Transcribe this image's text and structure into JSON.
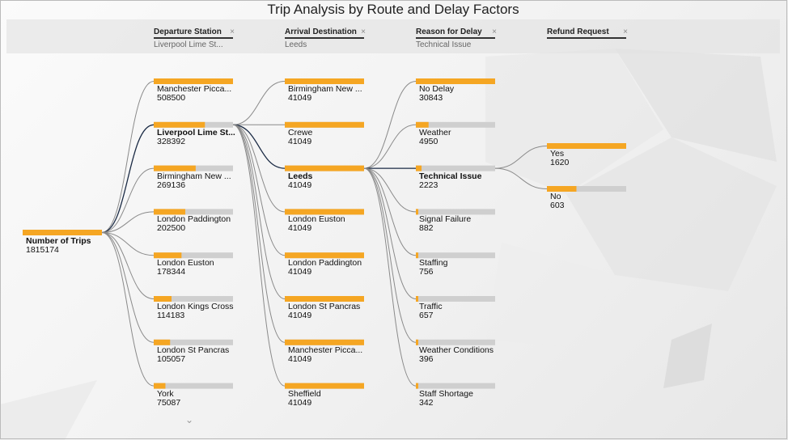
{
  "title": "Trip Analysis by Route and Delay Factors",
  "colors": {
    "accent": "#f5a623",
    "track": "#cfcfcf",
    "link": "#8a8a8a",
    "active_link": "#1a2a44"
  },
  "icons": {
    "filter_clear": "close-icon",
    "more": "chevron-down-icon"
  },
  "filters": [
    {
      "label": "Departure Station",
      "value": "Liverpool Lime St...",
      "close": "×"
    },
    {
      "label": "Arrival Destination",
      "value": "Leeds",
      "close": "×"
    },
    {
      "label": "Reason for Delay",
      "value": "Technical Issue",
      "close": "×"
    },
    {
      "label": "Refund Request",
      "value": "",
      "close": "×"
    }
  ],
  "more_glyph": "⌄",
  "chart_data": {
    "type": "decomposition-tree",
    "root": {
      "label": "Number of Trips",
      "value": 1815174
    },
    "levels": [
      {
        "name": "Departure Station",
        "selected": "Liverpool Lime St...",
        "nodes": [
          {
            "label": "Manchester Picca...",
            "value": 508500
          },
          {
            "label": "Liverpool Lime St...",
            "value": 328392
          },
          {
            "label": "Birmingham New ...",
            "value": 269136
          },
          {
            "label": "London Paddington",
            "value": 202500
          },
          {
            "label": "London Euston",
            "value": 178344
          },
          {
            "label": "London Kings Cross",
            "value": 114183
          },
          {
            "label": "London St Pancras",
            "value": 105057
          },
          {
            "label": "York",
            "value": 75087
          }
        ]
      },
      {
        "name": "Arrival Destination",
        "selected": "Leeds",
        "nodes": [
          {
            "label": "Birmingham New ...",
            "value": 41049
          },
          {
            "label": "Crewe",
            "value": 41049
          },
          {
            "label": "Leeds",
            "value": 41049
          },
          {
            "label": "London Euston",
            "value": 41049
          },
          {
            "label": "London Paddington",
            "value": 41049
          },
          {
            "label": "London St Pancras",
            "value": 41049
          },
          {
            "label": "Manchester Picca...",
            "value": 41049
          },
          {
            "label": "Sheffield",
            "value": 41049
          }
        ]
      },
      {
        "name": "Reason for Delay",
        "selected": "Technical Issue",
        "nodes": [
          {
            "label": "No Delay",
            "value": 30843
          },
          {
            "label": "Weather",
            "value": 4950
          },
          {
            "label": "Technical Issue",
            "value": 2223
          },
          {
            "label": "Signal Failure",
            "value": 882
          },
          {
            "label": "Staffing",
            "value": 756
          },
          {
            "label": "Traffic",
            "value": 657
          },
          {
            "label": "Weather Conditions",
            "value": 396
          },
          {
            "label": "Staff Shortage",
            "value": 342
          }
        ]
      },
      {
        "name": "Refund Request",
        "selected": "",
        "nodes": [
          {
            "label": "Yes",
            "value": 1620
          },
          {
            "label": "No",
            "value": 603
          }
        ]
      }
    ]
  }
}
